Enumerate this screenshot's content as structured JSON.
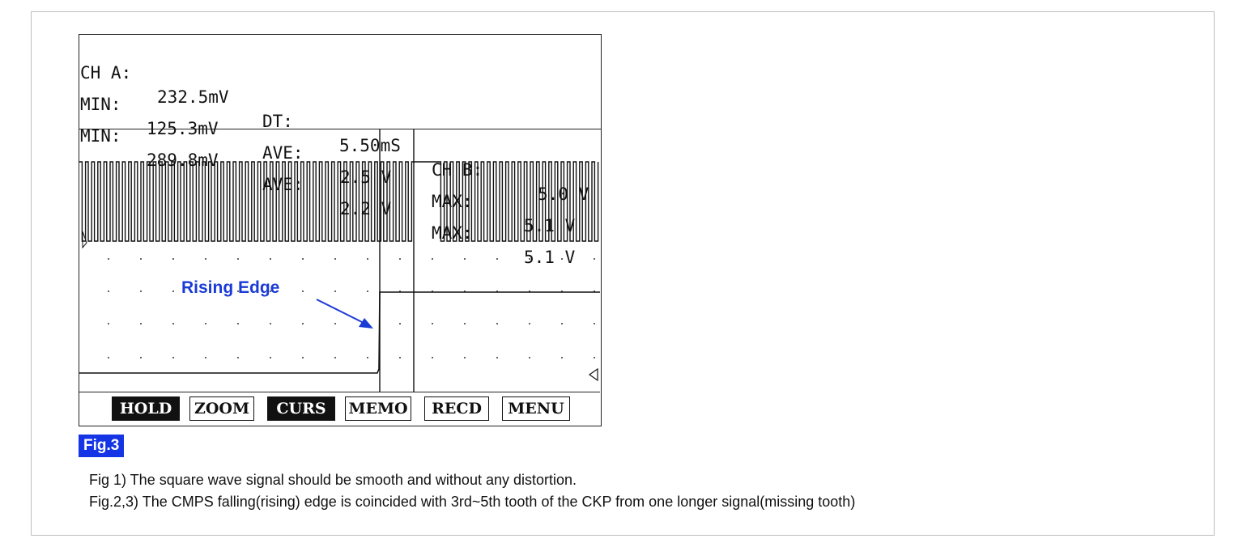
{
  "readout": {
    "row1": {
      "ch_a": "CH A:",
      "ch_a_val": "232.5mV",
      "dt": "DT:",
      "dt_val": "5.50mS",
      "ch_b": "CH B:",
      "ch_b_val": "5.0 V"
    },
    "row2": {
      "min": "MIN:",
      "min_val": "125.3mV",
      "ave": "AVE:",
      "ave_val": "2.5 V",
      "max": "MAX:",
      "max_val": "5.1 V"
    },
    "row3": {
      "min": "MIN:",
      "min_val": "289.8mV",
      "ave": "AVE:",
      "ave_val": "2.2 V",
      "max": "MAX:",
      "max_val": "5.1 V"
    }
  },
  "annotation": {
    "label": "Rising Edge"
  },
  "menu": {
    "items": [
      {
        "label": "HOLD",
        "active": true
      },
      {
        "label": "ZOOM",
        "active": false
      },
      {
        "label": "CURS",
        "active": true
      },
      {
        "label": "MEMO",
        "active": false
      },
      {
        "label": "RECD",
        "active": false
      },
      {
        "label": "MENU",
        "active": false
      }
    ]
  },
  "figure": {
    "tag": "Fig.3"
  },
  "captions": [
    "Fig 1) The square wave signal should be smooth and without any distortion.",
    "Fig.2,3) The CMPS falling(rising) edge is coincided with 3rd~5th tooth of the CKP from one longer signal(missing tooth)"
  ],
  "colors": {
    "accent": "#1434e6",
    "annotation": "#1b3bd6",
    "trace": "#111111"
  }
}
